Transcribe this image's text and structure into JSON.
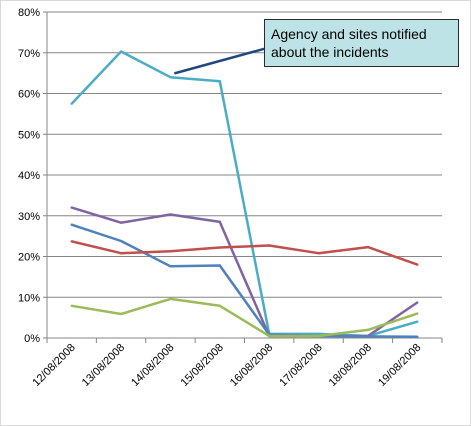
{
  "chart_data": {
    "type": "line",
    "categories": [
      "12/08/2008",
      "13/08/2008",
      "14/08/2008",
      "15/08/2008",
      "16/08/2008",
      "17/08/2008",
      "18/08/2008",
      "19/08/2008"
    ],
    "ylim": [
      0,
      80
    ],
    "y_ticks": [
      "0%",
      "10%",
      "20%",
      "30%",
      "40%",
      "50%",
      "60%",
      "70%",
      "80%"
    ],
    "y_unit": "%",
    "grid": "horizontal",
    "legend": "none",
    "series": [
      {
        "color": "#4bacc6",
        "values": [
          57.5,
          70.3,
          64.0,
          63.0,
          1.0,
          1.0,
          0.5,
          4.0
        ]
      },
      {
        "color": "#8064a2",
        "values": [
          32.0,
          28.3,
          30.3,
          28.5,
          0.5,
          0.5,
          0.5,
          8.7
        ]
      },
      {
        "color": "#4f81bd",
        "values": [
          27.8,
          23.8,
          17.6,
          17.8,
          0.8,
          0.5,
          0.4,
          0.3
        ]
      },
      {
        "color": "#c0504d",
        "values": [
          23.7,
          20.8,
          21.3,
          22.2,
          22.7,
          20.8,
          22.3,
          18.0
        ]
      },
      {
        "color": "#9bbb59",
        "values": [
          7.9,
          5.9,
          9.6,
          7.9,
          0.5,
          0.5,
          2.0,
          6.0
        ]
      }
    ],
    "annotation": {
      "text": "Agency and sites notified about the incidents",
      "arrow_color": "#1f497d",
      "from": {
        "x_index": 2.1,
        "y": 65
      },
      "to": {
        "x_index": 4.0,
        "y": 71.3
      }
    }
  }
}
